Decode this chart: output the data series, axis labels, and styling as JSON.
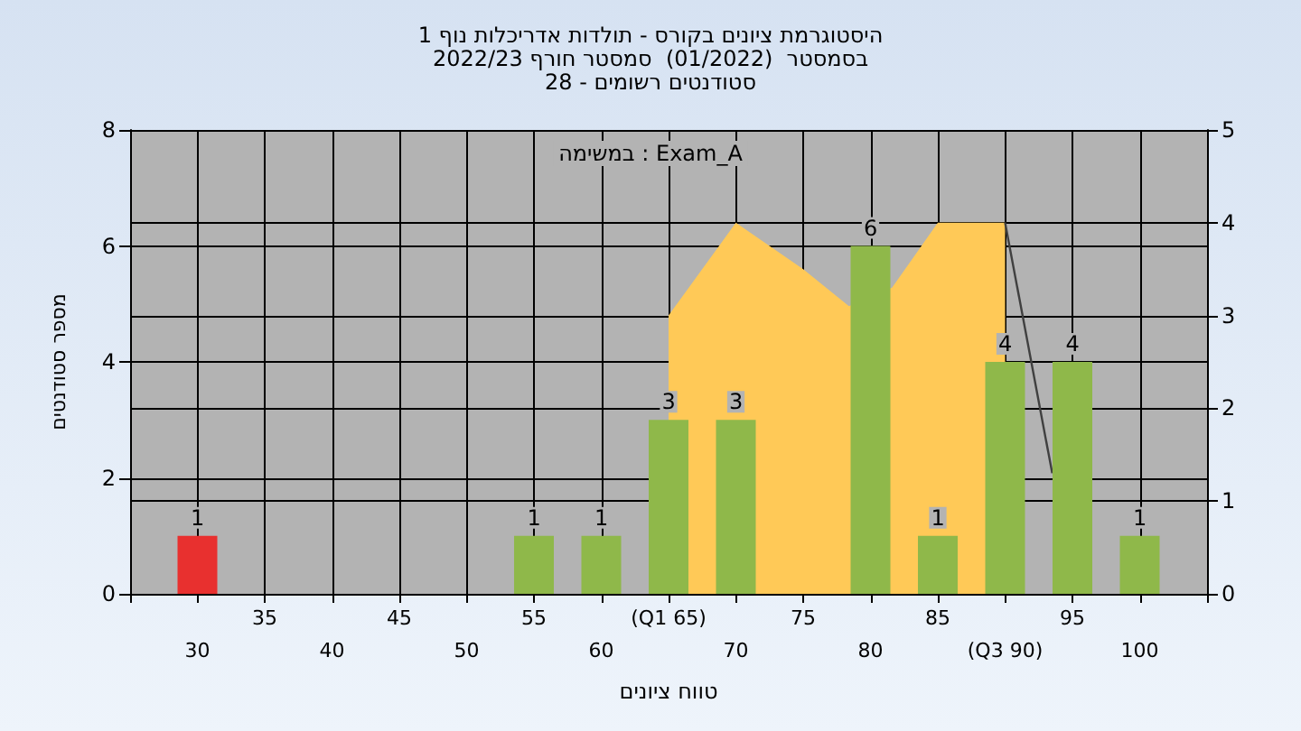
{
  "chart_data": {
    "type": "bar",
    "title": "היסטוגרמת ציונים בקורס - תולדות אדריכלות נוף 1",
    "subtitle": "בסמסטר  (01/2022)  סמסטר חורף 2022/23\nסטודנטים רשומים - 28",
    "xlabel": "טווח ציונים",
    "ylabel": "מספר סטודנטים",
    "annotations": [
      "במשימה : Exam_A"
    ],
    "x": [
      30,
      35,
      40,
      45,
      50,
      55,
      60,
      65,
      70,
      75,
      80,
      85,
      90,
      95,
      100
    ],
    "series": [
      {
        "type": "area",
        "axis": "y2",
        "color": "#ffc957",
        "x": [
          65,
          70,
          75,
          78.4,
          81.6,
          85,
          90
        ],
        "values": [
          3,
          4,
          3.5,
          3.1,
          3.3,
          4,
          4
        ]
      },
      {
        "type": "line",
        "axis": "y2",
        "color": "#404040",
        "x": [
          90,
          93.5
        ],
        "values": [
          4,
          1.3
        ]
      },
      {
        "colors": [
          "#e8302f",
          "#8fb84a",
          "#8fb84a",
          "#8fb84a",
          "#8fb84a",
          "#8fb84a",
          "#8fb84a",
          "#8fb84a",
          "#8fb84a",
          "#8fb84a",
          "#8fb84a",
          "#8fb84a",
          "#8fb84a",
          "#8fb84a",
          "#8fb84a"
        ],
        "values": [
          1,
          0,
          0,
          0,
          0,
          1,
          1,
          3,
          3,
          0,
          6,
          1,
          4,
          4,
          1
        ],
        "value_labels": [
          "1",
          null,
          null,
          null,
          null,
          "1",
          "1",
          "3",
          "3",
          null,
          "6",
          "1",
          "4",
          "4",
          "1"
        ]
      }
    ],
    "xlim": [
      25,
      105
    ],
    "xticks": [
      {
        "value": 25,
        "label": null
      },
      30,
      {
        "value": 35,
        "label": null
      },
      40,
      {
        "value": 45,
        "label": null
      },
      50,
      {
        "value": 55,
        "label": null
      },
      60,
      {
        "value": 65,
        "label": null
      },
      70,
      {
        "value": 75,
        "label": null
      },
      80,
      {
        "value": 85,
        "label": null
      },
      {
        "value": 90,
        "label": "(Q3 90)"
      },
      {
        "value": 95,
        "label": null
      },
      100,
      {
        "value": 105,
        "label": null
      }
    ],
    "x2lim": [
      25,
      105
    ],
    "x2ticks": [
      35,
      45,
      55,
      {
        "value": 65,
        "label": "(Q1 65)"
      },
      75,
      85,
      95
    ],
    "ylim": [
      0,
      8
    ],
    "yticks": [
      0,
      2,
      4,
      6,
      8
    ],
    "y2lim": [
      0,
      5
    ],
    "y2ticks": [
      0,
      1,
      2,
      3,
      4,
      5
    ],
    "grid": true,
    "legend": false,
    "marker": "none"
  }
}
